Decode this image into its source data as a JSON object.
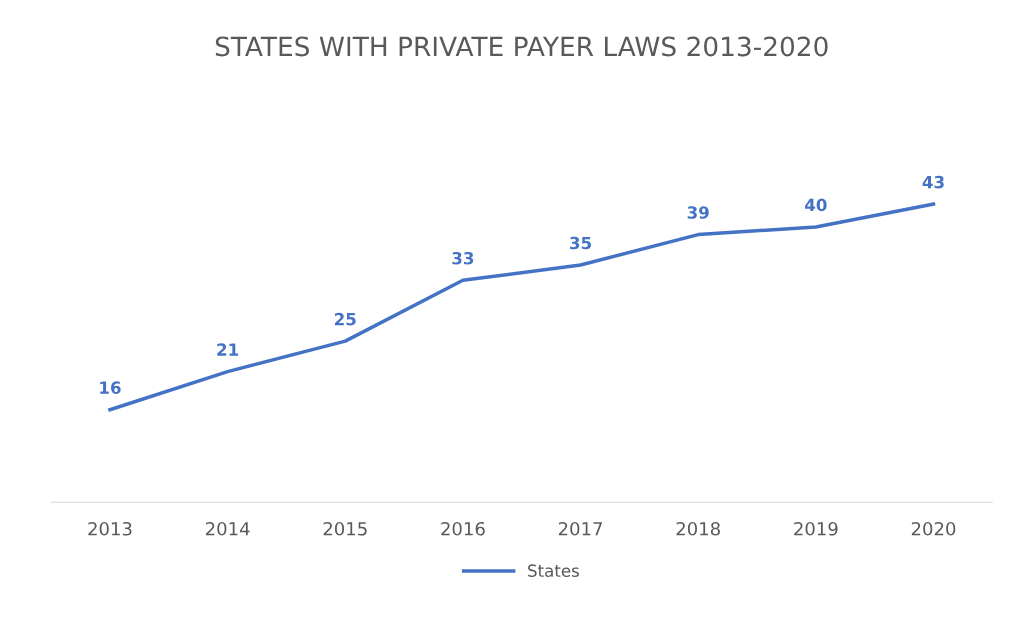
{
  "chart_data": {
    "type": "line",
    "title": "STATES WITH PRIVATE PAYER LAWS 2013-2020",
    "categories": [
      "2013",
      "2014",
      "2015",
      "2016",
      "2017",
      "2018",
      "2019",
      "2020"
    ],
    "series": [
      {
        "name": "States",
        "color": "#4472c4",
        "values": [
          16,
          21,
          25,
          33,
          35,
          39,
          40,
          43
        ]
      }
    ],
    "tick_labels": "x",
    "data_labels": true,
    "legend": "bottom",
    "grid": false,
    "line_style": "solid"
  }
}
